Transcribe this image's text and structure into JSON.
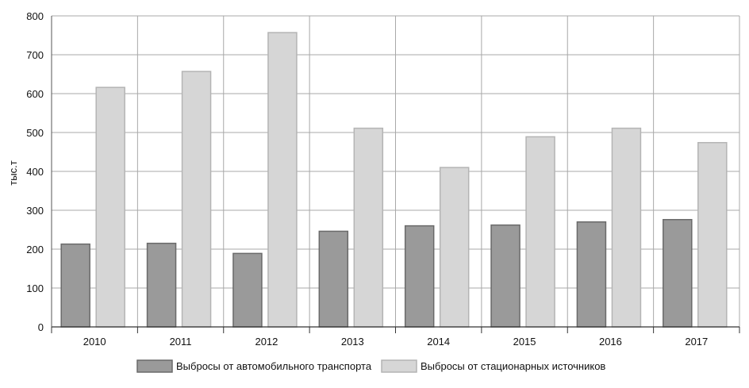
{
  "chart_data": {
    "type": "bar",
    "title": "",
    "xlabel": "",
    "ylabel": "тыс.т",
    "ylim": [
      0,
      800
    ],
    "yticks": [
      0,
      100,
      200,
      300,
      400,
      500,
      600,
      700,
      800
    ],
    "categories": [
      "2010",
      "2011",
      "2012",
      "2013",
      "2014",
      "2015",
      "2016",
      "2017"
    ],
    "grid": true,
    "legend_position": "bottom",
    "series": [
      {
        "name": "Выбросы от автомобильного транспорта",
        "color": "#9a9a9a",
        "values": [
          213,
          215,
          189,
          246,
          260,
          262,
          270,
          276
        ]
      },
      {
        "name": "Выбросы от стационарных источников",
        "color": "#d6d6d6",
        "values": [
          616,
          657,
          757,
          511,
          410,
          489,
          511,
          474
        ]
      }
    ]
  }
}
